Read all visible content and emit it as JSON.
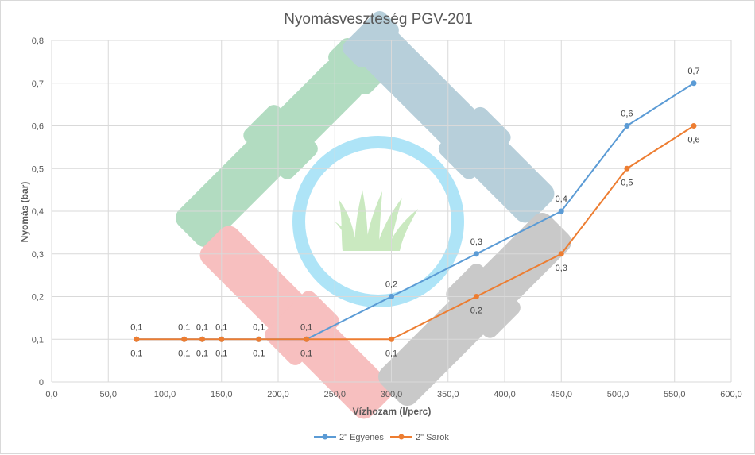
{
  "chart_data": {
    "type": "line",
    "title": "Nyomásveszteség PGV-201",
    "xlabel": "Vízhozam (l/perc)",
    "ylabel": "Nyomás (bar)",
    "xlim": [
      0,
      600
    ],
    "ylim": [
      0,
      0.8
    ],
    "x_ticks": [
      "0,0",
      "50,0",
      "100,0",
      "150,0",
      "200,0",
      "250,0",
      "300,0",
      "350,0",
      "400,0",
      "450,0",
      "500,0",
      "550,0",
      "600,0"
    ],
    "y_ticks": [
      "0",
      "0,1",
      "0,2",
      "0,3",
      "0,4",
      "0,5",
      "0,6",
      "0,7",
      "0,8"
    ],
    "grid": true,
    "legend_position": "bottom-center",
    "series": [
      {
        "name": "2\" Egyenes",
        "color": "#5b9bd5",
        "x": [
          75,
          117,
          133,
          150,
          183,
          225,
          300,
          375,
          450,
          508,
          567
        ],
        "y": [
          0.1,
          0.1,
          0.1,
          0.1,
          0.1,
          0.1,
          0.2,
          0.3,
          0.4,
          0.6,
          0.7
        ],
        "labels": [
          "0,1",
          "0,1",
          "0,1",
          "0,1",
          "0,1",
          "0,1",
          "0,2",
          "0,3",
          "0,4",
          "0,6",
          "0,7"
        ]
      },
      {
        "name": "2\" Sarok",
        "color": "#ed7d31",
        "x": [
          75,
          117,
          133,
          150,
          183,
          225,
          300,
          375,
          450,
          508,
          567
        ],
        "y": [
          0.1,
          0.1,
          0.1,
          0.1,
          0.1,
          0.1,
          0.1,
          0.2,
          0.3,
          0.5,
          0.6
        ],
        "labels": [
          "0,1",
          "0,1",
          "0,1",
          "0,1",
          "0,1",
          "0,1",
          "0,1",
          "0,2",
          "0,3",
          "0,5",
          "0,6"
        ]
      }
    ]
  }
}
